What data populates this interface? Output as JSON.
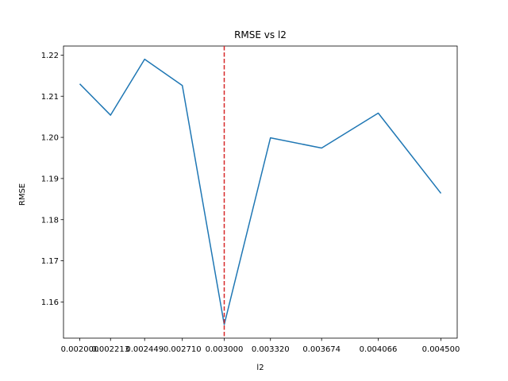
{
  "chart_data": {
    "type": "line",
    "title": "RMSE vs l2",
    "xlabel": "l2",
    "ylabel": "RMSE",
    "x": [
      0.002,
      0.002213,
      0.002449,
      0.00271,
      0.003,
      0.00332,
      0.003674,
      0.004066,
      0.0045
    ],
    "x_tick_labels": [
      "0.002000",
      "0.002213",
      "0.002449",
      "0.002710",
      "0.003000",
      "0.003320",
      "0.003674",
      "0.004066",
      "0.004500"
    ],
    "series": [
      {
        "values": [
          1.213,
          1.2054,
          1.219,
          1.2126,
          1.1545,
          1.1999,
          1.1974,
          1.2059,
          1.1864
        ],
        "color": "#1f77b4"
      }
    ],
    "reference_line": {
      "orientation": "vertical",
      "x": 0.003,
      "color": "#d62728",
      "style": "dashed"
    },
    "y_ticks": [
      1.16,
      1.17,
      1.18,
      1.19,
      1.2,
      1.21,
      1.22
    ],
    "y_tick_labels": [
      "1.16",
      "1.17",
      "1.18",
      "1.19",
      "1.20",
      "1.21",
      "1.22"
    ],
    "ylim": [
      1.1512,
      1.2222
    ],
    "grid": false,
    "legend": "none"
  }
}
